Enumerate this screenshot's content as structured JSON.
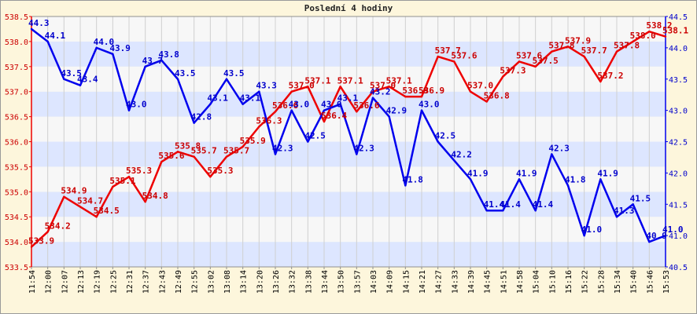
{
  "chart_data": {
    "type": "line",
    "title": "Poslední 4 hodiny",
    "x": [
      "11:54",
      "12:00",
      "12:07",
      "12:13",
      "12:19",
      "12:25",
      "12:31",
      "12:37",
      "12:43",
      "12:49",
      "12:55",
      "13:02",
      "13:08",
      "13:14",
      "13:20",
      "13:26",
      "13:32",
      "13:38",
      "13:44",
      "13:50",
      "13:57",
      "14:03",
      "14:09",
      "14:15",
      "14:21",
      "14:27",
      "14:33",
      "14:39",
      "14:45",
      "14:51",
      "14:58",
      "15:04",
      "15:10",
      "15:16",
      "15:22",
      "15:28",
      "15:34",
      "15:40",
      "15:46",
      "15:53"
    ],
    "x_ticks": [
      "11:54",
      "12:00",
      "12:07",
      "12:13",
      "12:19",
      "12:25",
      "12:31",
      "12:37",
      "12:43",
      "12:49",
      "12:55",
      "13:02",
      "13:08",
      "13:14",
      "13:20",
      "13:26",
      "13:32",
      "13:38",
      "13:44",
      "13:50",
      "13:57",
      "14:03",
      "14:09",
      "14:15",
      "14:21",
      "14:27",
      "14:33",
      "14:39",
      "14:45",
      "14:51",
      "14:58",
      "15:04",
      "15:10",
      "15:16",
      "15:22",
      "15:28",
      "15:34",
      "15:40",
      "15:46",
      "15:53"
    ],
    "ylim_left": [
      533.5,
      538.5
    ],
    "yticks_left": [
      "533.5",
      "534.0",
      "534.5",
      "535.0",
      "535.5",
      "536.0",
      "536.5",
      "537.0",
      "537.5",
      "538.0",
      "538.5"
    ],
    "ylim_right": [
      40.5,
      44.5
    ],
    "yticks_right": [
      "40.5",
      "41.0",
      "41.5",
      "42.0",
      "42.5",
      "43.0",
      "43.5",
      "44.0",
      "44.5"
    ],
    "grid": true,
    "series": [
      {
        "axis": "left",
        "color": "#ee0000",
        "values": [
          533.9,
          534.2,
          534.9,
          534.7,
          534.5,
          535.1,
          535.3,
          534.8,
          535.6,
          535.8,
          535.7,
          535.3,
          535.7,
          535.9,
          536.3,
          536.6,
          537.0,
          537.1,
          536.4,
          537.1,
          536.6,
          537.0,
          537.1,
          536.9,
          536.9,
          537.7,
          537.6,
          537.0,
          536.8,
          537.3,
          537.6,
          537.5,
          537.8,
          537.9,
          537.7,
          537.2,
          537.8,
          538.0,
          538.2,
          538.1
        ],
        "labels": [
          "533.9",
          "534.2",
          "534.9",
          "534.7",
          "534.5",
          "535.1",
          "535.3",
          "534.8",
          "535.6",
          "535.8",
          "535.7",
          "535.3",
          "535.7",
          "535.9",
          "536.3",
          "536.6",
          "537.0",
          "537.1",
          "536.4",
          "537.1",
          "536.6",
          "537.0",
          "537.1",
          "536.9",
          "536.9",
          "537.7",
          "537.6",
          "537.0",
          "536.8",
          "537.3",
          "537.6",
          "537.5",
          "537.8",
          "537.9",
          "537.7",
          "537.2",
          "537.8",
          "538.0",
          "538.2",
          "538.1"
        ]
      },
      {
        "axis": "right",
        "color": "#0000ee",
        "values": [
          44.3,
          44.1,
          43.5,
          43.4,
          44.0,
          43.9,
          43.0,
          43.7,
          43.8,
          43.5,
          42.8,
          43.1,
          43.5,
          43.1,
          43.3,
          42.3,
          43.0,
          42.5,
          43.0,
          43.1,
          42.3,
          43.2,
          42.9,
          41.8,
          43.0,
          42.5,
          42.2,
          41.9,
          41.4,
          41.4,
          41.9,
          41.4,
          42.3,
          41.8,
          41.0,
          41.9,
          41.3,
          41.5,
          40.9,
          41.0
        ],
        "labels": [
          "44.3",
          "44.1",
          "43.5",
          "43.4",
          "44.0",
          "43.9",
          "43.0",
          "43.7",
          "43.8",
          "43.5",
          "42.8",
          "43.1",
          "43.5",
          "43.1",
          "43.3",
          "42.3",
          "43.0",
          "42.5",
          "43.0",
          "43.1",
          "42.3",
          "43.2",
          "42.9",
          "41.8",
          "43.0",
          "42.5",
          "42.2",
          "41.9",
          "41.4",
          "41.4",
          "41.9",
          "41.4",
          "42.3",
          "41.8",
          "41.0",
          "41.9",
          "41.3",
          "41.5",
          "40.9",
          "41.0"
        ]
      }
    ]
  }
}
